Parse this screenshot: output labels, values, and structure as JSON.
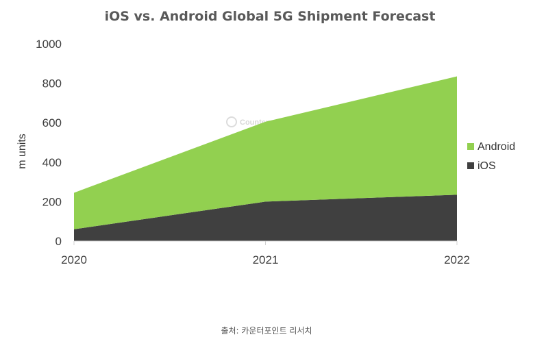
{
  "chart_data": {
    "type": "area",
    "stacked": true,
    "title": "iOS vs. Android Global 5G Shipment Forecast",
    "xlabel": "",
    "ylabel": "m units",
    "categories": [
      "2020",
      "2021",
      "2022"
    ],
    "ylim": [
      0,
      1000
    ],
    "yticks": [
      0,
      200,
      400,
      600,
      800,
      1000
    ],
    "grid": false,
    "legend_position": "right",
    "series": [
      {
        "name": "iOS",
        "values": [
          60,
          200,
          235
        ],
        "color": "#404040"
      },
      {
        "name": "Android",
        "values": [
          185,
          405,
          600
        ],
        "color": "#92d050"
      }
    ],
    "legend_order": [
      "Android",
      "iOS"
    ],
    "watermark": "Counterpoint"
  },
  "source_note": "출처: 카운터포인트 리서치",
  "axis_line_color": "#d0d0d0"
}
